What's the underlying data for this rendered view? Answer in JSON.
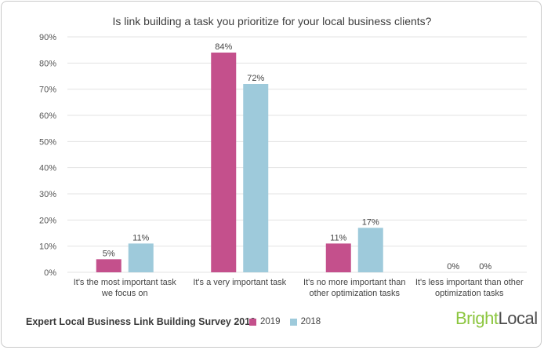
{
  "title": "Is link building a task you prioritize for your local business clients?",
  "footer": {
    "survey_title": "Expert Local Business Link Building Survey 2019",
    "logo_part1": "Bright",
    "logo_part2": "Local"
  },
  "colors": {
    "series_2019": "#c4508c",
    "series_2018": "#9ecadb",
    "grid": "#e3e3e3"
  },
  "chart_data": {
    "type": "bar",
    "title": "Is link building a task you prioritize for your local business clients?",
    "categories": [
      [
        "It's the most important task",
        "we focus on"
      ],
      [
        "It's a very important task"
      ],
      [
        "It's no more important than",
        "other optimization tasks"
      ],
      [
        "It's less important than other",
        "optimization tasks"
      ]
    ],
    "series": [
      {
        "name": "2019",
        "values": [
          5,
          84,
          11,
          0
        ],
        "labels": [
          "5%",
          "84%",
          "11%",
          "0%"
        ]
      },
      {
        "name": "2018",
        "values": [
          11,
          72,
          17,
          0
        ],
        "labels": [
          "11%",
          "72%",
          "17%",
          "0%"
        ]
      }
    ],
    "ylim": [
      0,
      90
    ],
    "yticks": [
      "0%",
      "10%",
      "20%",
      "30%",
      "40%",
      "50%",
      "60%",
      "70%",
      "80%",
      "90%"
    ],
    "grid": true,
    "legend": "bottom"
  }
}
